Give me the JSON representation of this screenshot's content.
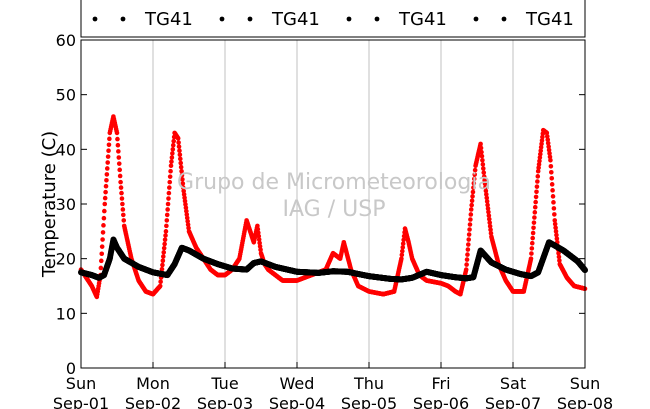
{
  "chart_data": {
    "type": "scatter",
    "ylabel": "Temperature (C)",
    "xlabel": "",
    "ylim": [
      0,
      60
    ],
    "yticks": [
      0,
      10,
      20,
      30,
      40,
      50,
      60
    ],
    "xlim": [
      0,
      7
    ],
    "x_units": "days",
    "x_ticks": [
      {
        "x": 0,
        "day": "Sun",
        "date": "Sep-01"
      },
      {
        "x": 1,
        "day": "Mon",
        "date": "Sep-02"
      },
      {
        "x": 2,
        "day": "Tue",
        "date": "Sep-03"
      },
      {
        "x": 3,
        "day": "Wed",
        "date": "Sep-04"
      },
      {
        "x": 4,
        "day": "Thu",
        "date": "Sep-05"
      },
      {
        "x": 5,
        "day": "Fri",
        "date": "Sep-06"
      },
      {
        "x": 6,
        "day": "Sat",
        "date": "Sep-07"
      },
      {
        "x": 7,
        "day": "Sun",
        "date": "Sep-08"
      }
    ],
    "grid": "vertical",
    "legend": {
      "placement": "top",
      "entries": [
        "TG41",
        "TG41",
        "TG41",
        "TG41"
      ]
    },
    "watermark": [
      "Grupo de Micrometeorologia",
      "IAG / USP"
    ],
    "series": [
      {
        "color": "#ff0000",
        "x": [
          0.0,
          0.15,
          0.22,
          0.27,
          0.33,
          0.4,
          0.45,
          0.5,
          0.55,
          0.6,
          0.7,
          0.8,
          0.9,
          1.0,
          1.1,
          1.18,
          1.25,
          1.3,
          1.35,
          1.42,
          1.5,
          1.6,
          1.7,
          1.8,
          1.9,
          2.0,
          2.1,
          2.2,
          2.3,
          2.4,
          2.45,
          2.5,
          2.55,
          2.6,
          2.7,
          2.8,
          3.0,
          3.2,
          3.4,
          3.5,
          3.6,
          3.65,
          3.75,
          3.85,
          4.0,
          4.2,
          4.35,
          4.45,
          4.5,
          4.55,
          4.6,
          4.7,
          4.8,
          5.0,
          5.1,
          5.2,
          5.27,
          5.35,
          5.42,
          5.48,
          5.55,
          5.6,
          5.7,
          5.8,
          5.9,
          6.0,
          6.15,
          6.25,
          6.35,
          6.42,
          6.47,
          6.52,
          6.58,
          6.65,
          6.75,
          6.85,
          7.0
        ],
        "y": [
          18,
          15,
          13,
          17,
          30,
          43,
          46,
          43,
          34,
          26,
          20,
          16,
          14,
          13.5,
          15,
          25,
          37,
          43,
          42,
          33,
          25,
          22,
          20,
          18,
          17,
          17,
          18,
          20,
          27,
          23,
          26,
          21,
          19,
          18,
          17,
          16,
          16,
          17,
          18,
          21,
          20,
          23,
          18,
          15,
          14,
          13.5,
          14,
          20,
          25.5,
          23,
          20,
          17,
          16,
          15.5,
          15,
          14,
          13.5,
          18,
          29,
          37,
          41,
          35,
          24,
          19,
          16,
          14,
          14,
          20,
          36,
          43.5,
          43,
          38,
          27,
          19,
          16.5,
          15,
          14.5
        ]
      },
      {
        "color": "#000000",
        "x": [
          0.0,
          0.15,
          0.25,
          0.32,
          0.4,
          0.45,
          0.5,
          0.6,
          0.8,
          1.0,
          1.2,
          1.3,
          1.4,
          1.5,
          1.7,
          1.9,
          2.1,
          2.3,
          2.4,
          2.5,
          2.7,
          3.0,
          3.3,
          3.5,
          3.7,
          4.0,
          4.3,
          4.45,
          4.6,
          4.8,
          5.0,
          5.2,
          5.35,
          5.45,
          5.55,
          5.7,
          5.9,
          6.1,
          6.25,
          6.35,
          6.5,
          6.7,
          6.9,
          7.0
        ],
        "y": [
          17.5,
          17,
          16.5,
          17,
          20,
          23.5,
          22,
          20,
          18.5,
          17.5,
          17,
          19,
          22,
          21.5,
          20,
          19,
          18.2,
          18,
          19.2,
          19.5,
          18.5,
          17.6,
          17.4,
          17.7,
          17.6,
          16.8,
          16.3,
          16.2,
          16.5,
          17.6,
          17,
          16.6,
          16.4,
          16.6,
          21.5,
          19.3,
          18,
          17.2,
          16.8,
          17.5,
          23,
          21.5,
          19.5,
          17.9
        ]
      }
    ]
  }
}
